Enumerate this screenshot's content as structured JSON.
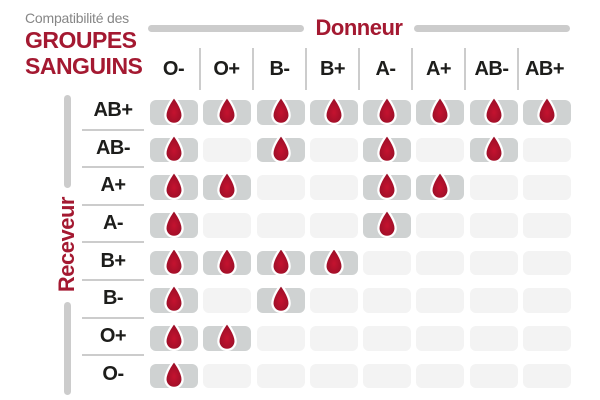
{
  "title": {
    "kicker": "Compatibilité des",
    "line1": "GROUPES",
    "line2": "SANGUINS"
  },
  "axes": {
    "donor": "Donneur",
    "receiver": "Receveur"
  },
  "colors": {
    "brand_red": "#a41931",
    "drop_center": "#c5122f",
    "drop_mid": "#a8102a",
    "drop_edge": "#8c0d24",
    "drop_stroke": "#ffffff",
    "cell_filled": "#cfd2d2",
    "cell_empty": "#f3f3f3",
    "divider": "#cccccc",
    "header_text": "#1d1d1b",
    "kicker_gray": "#868686",
    "background": "#ffffff"
  },
  "icons": {
    "compatible": "blood-drop-icon"
  },
  "chart_data": {
    "type": "heatmap",
    "title": "Compatibilité des groupes sanguins",
    "xlabel": "Donneur",
    "ylabel": "Receveur",
    "columns": [
      "O-",
      "O+",
      "B-",
      "B+",
      "A-",
      "A+",
      "AB-",
      "AB+"
    ],
    "rows": [
      "AB+",
      "AB-",
      "A+",
      "A-",
      "B+",
      "B-",
      "O+",
      "O-"
    ],
    "matrix": [
      [
        1,
        1,
        1,
        1,
        1,
        1,
        1,
        1
      ],
      [
        1,
        0,
        1,
        0,
        1,
        0,
        1,
        0
      ],
      [
        1,
        1,
        0,
        0,
        1,
        1,
        0,
        0
      ],
      [
        1,
        0,
        0,
        0,
        1,
        0,
        0,
        0
      ],
      [
        1,
        1,
        1,
        1,
        0,
        0,
        0,
        0
      ],
      [
        1,
        0,
        1,
        0,
        0,
        0,
        0,
        0
      ],
      [
        1,
        1,
        0,
        0,
        0,
        0,
        0,
        0
      ],
      [
        1,
        0,
        0,
        0,
        0,
        0,
        0,
        0
      ]
    ],
    "cell_meaning": "1 = compatible (goutte de sang affichée), 0 = incompatible (case vide)",
    "legend_position": "none",
    "grid": false
  }
}
